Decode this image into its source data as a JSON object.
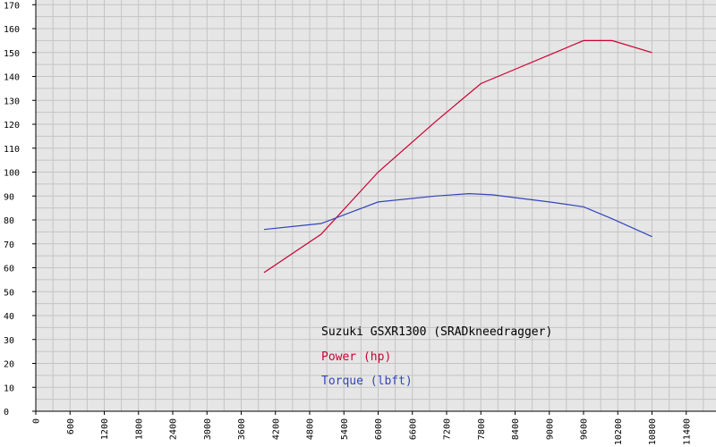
{
  "chart_data": {
    "type": "line",
    "grid": true,
    "xlim": [
      0,
      12000
    ],
    "ylim": [
      0,
      170
    ],
    "x_ticks": [
      0,
      600,
      1200,
      1800,
      2400,
      3000,
      3600,
      4200,
      4800,
      5400,
      6000,
      6600,
      7200,
      7800,
      8400,
      9000,
      9600,
      10200,
      10800,
      11400
    ],
    "y_ticks": [
      0,
      10,
      20,
      30,
      40,
      50,
      60,
      70,
      80,
      90,
      100,
      110,
      120,
      130,
      140,
      150,
      160,
      170
    ],
    "legend_position": "bottom-center",
    "title": "Suzuki GSXR1300 (SRADkneedragger)",
    "series": [
      {
        "name": "Power (hp)",
        "color": "#cc0033",
        "x": [
          4000,
          5000,
          6000,
          7000,
          7800,
          8400,
          9000,
          9600,
          10100,
          10800
        ],
        "y": [
          58,
          74,
          100,
          121,
          137,
          143,
          149,
          155,
          155,
          150
        ]
      },
      {
        "name": "Torque (lbft)",
        "color": "#3344bb",
        "x": [
          4000,
          5000,
          6000,
          7000,
          7600,
          8000,
          9000,
          9600,
          10100,
          10800
        ],
        "y": [
          76,
          78.5,
          87.5,
          90,
          91,
          90.5,
          87.5,
          85.5,
          80.5,
          73
        ]
      }
    ]
  }
}
